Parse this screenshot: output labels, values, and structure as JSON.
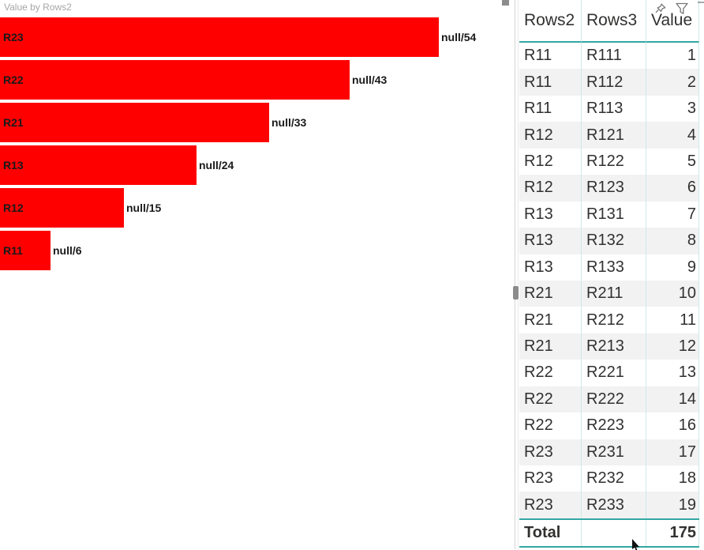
{
  "colors": {
    "bar_red": "#FE0000",
    "teal_border": "#33A7A2",
    "light_teal_separator": "#CBEAE8",
    "alt_row_bg": "#F2F2F2",
    "text_dark": "#323130",
    "title_gray": "#A6A6A6",
    "icon_gray": "#767676"
  },
  "chart": {
    "title": "Value by Rows2"
  },
  "chart_data": {
    "type": "bar",
    "orientation": "horizontal",
    "title": "Value by Rows2",
    "series_name": "Value",
    "categories": [
      "R23",
      "R22",
      "R21",
      "R13",
      "R12",
      "R11"
    ],
    "values": [
      54,
      43,
      33,
      24,
      15,
      6
    ],
    "data_labels": [
      "null/54",
      "null/43",
      "null/33",
      "null/24",
      "null/15",
      "null/6"
    ],
    "xlim": [
      0,
      54
    ],
    "grid": false,
    "legend": false,
    "bar_color": "#FE0000"
  },
  "table": {
    "columns": [
      "Rows2",
      "Rows3",
      "Value"
    ],
    "rows": [
      [
        "R11",
        "R111",
        "1"
      ],
      [
        "R11",
        "R112",
        "2"
      ],
      [
        "R11",
        "R113",
        "3"
      ],
      [
        "R12",
        "R121",
        "4"
      ],
      [
        "R12",
        "R122",
        "5"
      ],
      [
        "R12",
        "R123",
        "6"
      ],
      [
        "R13",
        "R131",
        "7"
      ],
      [
        "R13",
        "R132",
        "8"
      ],
      [
        "R13",
        "R133",
        "9"
      ],
      [
        "R21",
        "R211",
        "10"
      ],
      [
        "R21",
        "R212",
        "11"
      ],
      [
        "R21",
        "R213",
        "12"
      ],
      [
        "R22",
        "R221",
        "13"
      ],
      [
        "R22",
        "R222",
        "14"
      ],
      [
        "R22",
        "R223",
        "16"
      ],
      [
        "R23",
        "R231",
        "17"
      ],
      [
        "R23",
        "R232",
        "18"
      ],
      [
        "R23",
        "R233",
        "19"
      ]
    ],
    "total": {
      "label": "Total",
      "value": "175"
    }
  },
  "visual_header": {
    "icons": [
      "pin-icon",
      "filter-icon",
      "more-options-icon"
    ]
  }
}
